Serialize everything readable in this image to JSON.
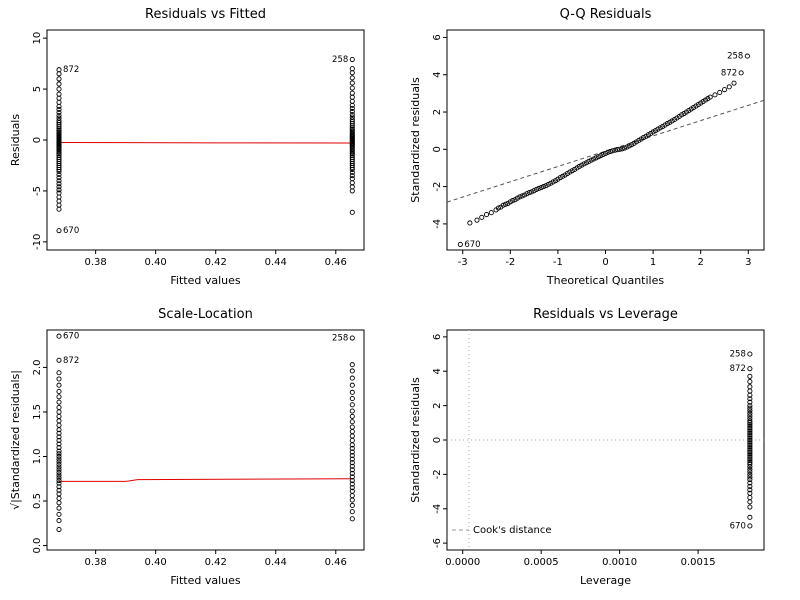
{
  "style": {
    "background": "#ffffff",
    "point_color": "#000000",
    "label_color": "#666666",
    "smooth_color": "#e00000",
    "reference_color": "#555555",
    "guide_color": "#aaaaaa",
    "legend_color": "#999999"
  },
  "chart_data": [
    {
      "type": "scatter",
      "title": "Residuals vs Fitted",
      "xlabel": "Fitted values",
      "ylabel": "Residuals",
      "xlim": [
        0.3638,
        0.4694
      ],
      "ylim": [
        -10.8,
        10.8
      ],
      "xticks": {
        "values": [
          0.38,
          0.4,
          0.42,
          0.44,
          0.46
        ],
        "labels": [
          "0.38",
          "0.40",
          "0.42",
          "0.44",
          "0.46"
        ]
      },
      "yticks": {
        "values": [
          -10,
          -5,
          0,
          5,
          10
        ],
        "labels": [
          "-10",
          "-5",
          "0",
          "5",
          "10"
        ]
      },
      "series": [
        {
          "type": "strip",
          "x": 0.3678,
          "ys": [
            -6.8,
            -6.4,
            -6.0,
            -5.6,
            -5.2,
            -4.9,
            -4.6,
            -4.3,
            -4.0,
            -3.7,
            -3.4,
            -3.1,
            -2.9,
            -2.7,
            -2.5,
            -2.3,
            -2.1,
            -1.9,
            -1.7,
            -1.5,
            -1.35,
            -1.2,
            -1.05,
            -0.9,
            -0.8,
            -0.7,
            -0.6,
            -0.5,
            -0.4,
            -0.3,
            -0.2,
            -0.1,
            0.0,
            0.1,
            0.2,
            0.3,
            0.4,
            0.5,
            0.65,
            0.8,
            0.95,
            1.1,
            1.3,
            1.5,
            1.7,
            1.9,
            2.15,
            2.4,
            2.7,
            3.0,
            3.3,
            3.7,
            4.1,
            4.5,
            5.0,
            5.5,
            6.0,
            6.5
          ]
        },
        {
          "type": "strip",
          "x": 0.4655,
          "ys": [
            -7.1,
            -5.0,
            -4.6,
            -4.2,
            -3.8,
            -3.5,
            -3.2,
            -2.9,
            -2.7,
            -2.5,
            -2.3,
            -2.1,
            -1.9,
            -1.7,
            -1.5,
            -1.35,
            -1.2,
            -1.05,
            -0.9,
            -0.75,
            -0.6,
            -0.5,
            -0.4,
            -0.3,
            -0.2,
            -0.1,
            0.0,
            0.1,
            0.2,
            0.3,
            0.4,
            0.5,
            0.6,
            0.75,
            0.9,
            1.05,
            1.2,
            1.4,
            1.6,
            1.8,
            2.0,
            2.25,
            2.5,
            2.8,
            3.1,
            3.4,
            3.8,
            4.2,
            4.6,
            5.1,
            5.6,
            6.1,
            6.6,
            7.0
          ]
        }
      ],
      "lines": [
        {
          "type": "poly",
          "name": "smooth-line",
          "color": "#e00000",
          "points": [
            [
              0.3678,
              -0.25
            ],
            [
              0.42,
              -0.28
            ],
            [
              0.4655,
              -0.3
            ]
          ]
        }
      ],
      "labels": [
        {
          "text": "872",
          "x": 0.3678,
          "y": 6.9,
          "side": "right"
        },
        {
          "text": "670",
          "x": 0.3678,
          "y": -8.9,
          "side": "right"
        },
        {
          "text": "258",
          "x": 0.4655,
          "y": 7.9,
          "side": "left"
        }
      ]
    },
    {
      "type": "scatter",
      "title": "Q-Q Residuals",
      "xlabel": "Theoretical Quantiles",
      "ylabel": "Standardized residuals",
      "xlim": [
        -3.33,
        3.33
      ],
      "ylim": [
        -5.4,
        6.4
      ],
      "xticks": {
        "values": [
          -3,
          -2,
          -1,
          0,
          1,
          2,
          3
        ],
        "labels": [
          "-3",
          "-2",
          "-1",
          "0",
          "1",
          "2",
          "3"
        ]
      },
      "yticks": {
        "values": [
          -4,
          -2,
          0,
          2,
          4,
          6
        ],
        "labels": [
          "-4",
          "-2",
          "0",
          "2",
          "4",
          "6"
        ]
      },
      "series": [
        {
          "type": "xy",
          "points": [
            [
              -2.85,
              -3.95
            ],
            [
              -2.7,
              -3.8
            ],
            [
              -2.6,
              -3.65
            ],
            [
              -2.5,
              -3.5
            ],
            [
              -2.4,
              -3.4
            ],
            [
              -2.3,
              -3.25
            ],
            [
              -2.25,
              -3.15
            ],
            [
              -2.2,
              -3.1
            ],
            [
              -2.15,
              -3.0
            ],
            [
              -2.1,
              -2.95
            ],
            [
              -2.05,
              -2.9
            ],
            [
              -2.0,
              -2.82
            ],
            [
              -1.95,
              -2.75
            ],
            [
              -1.9,
              -2.7
            ],
            [
              -1.85,
              -2.62
            ],
            [
              -1.8,
              -2.55
            ],
            [
              -1.75,
              -2.5
            ],
            [
              -1.7,
              -2.45
            ],
            [
              -1.65,
              -2.38
            ],
            [
              -1.6,
              -2.32
            ],
            [
              -1.55,
              -2.28
            ],
            [
              -1.5,
              -2.22
            ],
            [
              -1.45,
              -2.15
            ],
            [
              -1.4,
              -2.1
            ],
            [
              -1.35,
              -2.05
            ],
            [
              -1.3,
              -2.0
            ],
            [
              -1.25,
              -1.95
            ],
            [
              -1.2,
              -1.88
            ],
            [
              -1.15,
              -1.82
            ],
            [
              -1.1,
              -1.75
            ],
            [
              -1.05,
              -1.68
            ],
            [
              -1.0,
              -1.6
            ],
            [
              -0.95,
              -1.52
            ],
            [
              -0.9,
              -1.45
            ],
            [
              -0.85,
              -1.38
            ],
            [
              -0.8,
              -1.3
            ],
            [
              -0.75,
              -1.22
            ],
            [
              -0.7,
              -1.15
            ],
            [
              -0.65,
              -1.08
            ],
            [
              -0.6,
              -1.0
            ],
            [
              -0.55,
              -0.92
            ],
            [
              -0.5,
              -0.85
            ],
            [
              -0.45,
              -0.78
            ],
            [
              -0.4,
              -0.72
            ],
            [
              -0.35,
              -0.65
            ],
            [
              -0.3,
              -0.58
            ],
            [
              -0.25,
              -0.52
            ],
            [
              -0.2,
              -0.46
            ],
            [
              -0.15,
              -0.4
            ],
            [
              -0.1,
              -0.34
            ],
            [
              -0.05,
              -0.28
            ],
            [
              0.0,
              -0.22
            ],
            [
              0.05,
              -0.16
            ],
            [
              0.1,
              -0.12
            ],
            [
              0.15,
              -0.08
            ],
            [
              0.2,
              -0.05
            ],
            [
              0.25,
              -0.02
            ],
            [
              0.3,
              0.0
            ],
            [
              0.35,
              0.03
            ],
            [
              0.4,
              0.07
            ],
            [
              0.45,
              0.12
            ],
            [
              0.5,
              0.18
            ],
            [
              0.55,
              0.25
            ],
            [
              0.6,
              0.32
            ],
            [
              0.65,
              0.4
            ],
            [
              0.7,
              0.48
            ],
            [
              0.75,
              0.55
            ],
            [
              0.8,
              0.63
            ],
            [
              0.85,
              0.7
            ],
            [
              0.9,
              0.78
            ],
            [
              0.95,
              0.85
            ],
            [
              1.0,
              0.93
            ],
            [
              1.05,
              1.0
            ],
            [
              1.1,
              1.08
            ],
            [
              1.15,
              1.15
            ],
            [
              1.2,
              1.22
            ],
            [
              1.25,
              1.3
            ],
            [
              1.3,
              1.38
            ],
            [
              1.35,
              1.45
            ],
            [
              1.4,
              1.52
            ],
            [
              1.45,
              1.6
            ],
            [
              1.5,
              1.68
            ],
            [
              1.55,
              1.76
            ],
            [
              1.6,
              1.85
            ],
            [
              1.65,
              1.92
            ],
            [
              1.7,
              2.0
            ],
            [
              1.75,
              2.08
            ],
            [
              1.8,
              2.16
            ],
            [
              1.85,
              2.24
            ],
            [
              1.9,
              2.32
            ],
            [
              1.95,
              2.4
            ],
            [
              2.0,
              2.48
            ],
            [
              2.05,
              2.56
            ],
            [
              2.1,
              2.64
            ],
            [
              2.15,
              2.72
            ],
            [
              2.2,
              2.8
            ],
            [
              2.3,
              2.92
            ],
            [
              2.4,
              3.05
            ],
            [
              2.5,
              3.2
            ],
            [
              2.6,
              3.35
            ],
            [
              2.7,
              3.55
            ]
          ]
        }
      ],
      "lines": [
        {
          "type": "abline",
          "name": "qq-reference-line",
          "color": "#555555",
          "dash": "4,3",
          "slope": 0.82,
          "intercept": -0.1
        }
      ],
      "labels": [
        {
          "text": "670",
          "x": -3.05,
          "y": -5.1,
          "side": "right"
        },
        {
          "text": "872",
          "x": 2.85,
          "y": 4.1,
          "side": "left"
        },
        {
          "text": "258",
          "x": 2.98,
          "y": 5.0,
          "side": "left"
        }
      ]
    },
    {
      "type": "scatter",
      "title": "Scale-Location",
      "xlabel": "Fitted values",
      "ylabel": "√|Standardized residuals|",
      "xlim": [
        0.3638,
        0.4694
      ],
      "ylim": [
        -0.05,
        2.42
      ],
      "xticks": {
        "values": [
          0.38,
          0.4,
          0.42,
          0.44,
          0.46
        ],
        "labels": [
          "0.38",
          "0.40",
          "0.42",
          "0.44",
          "0.46"
        ]
      },
      "yticks": {
        "values": [
          0,
          0.5,
          1.0,
          1.5,
          2.0
        ],
        "labels": [
          "0.0",
          "0.5",
          "1.0",
          "1.5",
          "2.0"
        ]
      },
      "series": [
        {
          "type": "strip",
          "x": 0.3678,
          "ys": [
            0.18,
            0.28,
            0.35,
            0.42,
            0.48,
            0.53,
            0.58,
            0.62,
            0.66,
            0.7,
            0.73,
            0.76,
            0.79,
            0.82,
            0.85,
            0.88,
            0.91,
            0.94,
            0.97,
            1.0,
            1.03,
            1.06,
            1.1,
            1.14,
            1.18,
            1.22,
            1.26,
            1.3,
            1.35,
            1.4,
            1.45,
            1.5,
            1.55,
            1.61,
            1.67,
            1.73,
            1.8,
            1.87,
            1.94
          ]
        },
        {
          "type": "strip",
          "x": 0.4655,
          "ys": [
            0.3,
            0.38,
            0.45,
            0.51,
            0.56,
            0.61,
            0.65,
            0.69,
            0.73,
            0.77,
            0.81,
            0.85,
            0.89,
            0.93,
            0.97,
            1.01,
            1.05,
            1.09,
            1.13,
            1.18,
            1.23,
            1.28,
            1.33,
            1.39,
            1.45,
            1.51,
            1.58,
            1.65,
            1.72,
            1.8,
            1.88,
            1.96,
            2.03
          ]
        }
      ],
      "lines": [
        {
          "type": "poly",
          "name": "smooth-line",
          "color": "#e00000",
          "points": [
            [
              0.3678,
              0.72
            ],
            [
              0.39,
              0.72
            ],
            [
              0.394,
              0.74
            ],
            [
              0.4655,
              0.75
            ]
          ]
        }
      ],
      "labels": [
        {
          "text": "670",
          "x": 0.3678,
          "y": 2.35,
          "side": "right"
        },
        {
          "text": "872",
          "x": 0.3678,
          "y": 2.08,
          "side": "right"
        },
        {
          "text": "258",
          "x": 0.4655,
          "y": 2.33,
          "side": "left"
        }
      ]
    },
    {
      "type": "scatter",
      "title": "Residuals vs Leverage",
      "xlabel": "Leverage",
      "ylabel": "Standardized residuals",
      "xlim": [
        -0.0001,
        0.00192
      ],
      "ylim": [
        -6.4,
        6.4
      ],
      "xticks": {
        "values": [
          0,
          0.0005,
          0.001,
          0.0015
        ],
        "labels": [
          "0.0000",
          "0.0005",
          "0.0010",
          "0.0015"
        ]
      },
      "yticks": {
        "values": [
          -6,
          -4,
          -2,
          0,
          2,
          4,
          6
        ],
        "labels": [
          "-6",
          "-4",
          "-2",
          "0",
          "2",
          "4",
          "6"
        ]
      },
      "series": [
        {
          "type": "strip",
          "x": 0.00183,
          "ys": [
            -4.5,
            -3.9,
            -3.6,
            -3.35,
            -3.1,
            -2.9,
            -2.7,
            -2.5,
            -2.3,
            -2.15,
            -2.0,
            -1.85,
            -1.7,
            -1.55,
            -1.4,
            -1.3,
            -1.2,
            -1.1,
            -1.0,
            -0.9,
            -0.8,
            -0.7,
            -0.6,
            -0.5,
            -0.4,
            -0.3,
            -0.2,
            -0.1,
            0.0,
            0.1,
            0.2,
            0.3,
            0.4,
            0.5,
            0.6,
            0.7,
            0.8,
            0.9,
            1.0,
            1.1,
            1.25,
            1.4,
            1.55,
            1.7,
            1.85,
            2.0,
            2.2,
            2.4,
            2.6,
            2.85,
            3.1,
            3.4,
            3.7
          ]
        }
      ],
      "lines": [
        {
          "type": "hline",
          "name": "zero-line",
          "y": 0,
          "color": "#aaaaaa",
          "dash": "1,3"
        },
        {
          "type": "vline",
          "name": "leverage-guide-line",
          "x": 4e-05,
          "color": "#aaaaaa",
          "dash": "1,3"
        }
      ],
      "labels": [
        {
          "text": "258",
          "x": 0.00183,
          "y": 5.0,
          "side": "left"
        },
        {
          "text": "872",
          "x": 0.00183,
          "y": 4.15,
          "side": "left"
        },
        {
          "text": "670",
          "x": 0.00183,
          "y": -5.0,
          "side": "left"
        }
      ],
      "legend": {
        "text": "Cook's distance",
        "color": "#999999",
        "dash": "4,3"
      }
    }
  ]
}
